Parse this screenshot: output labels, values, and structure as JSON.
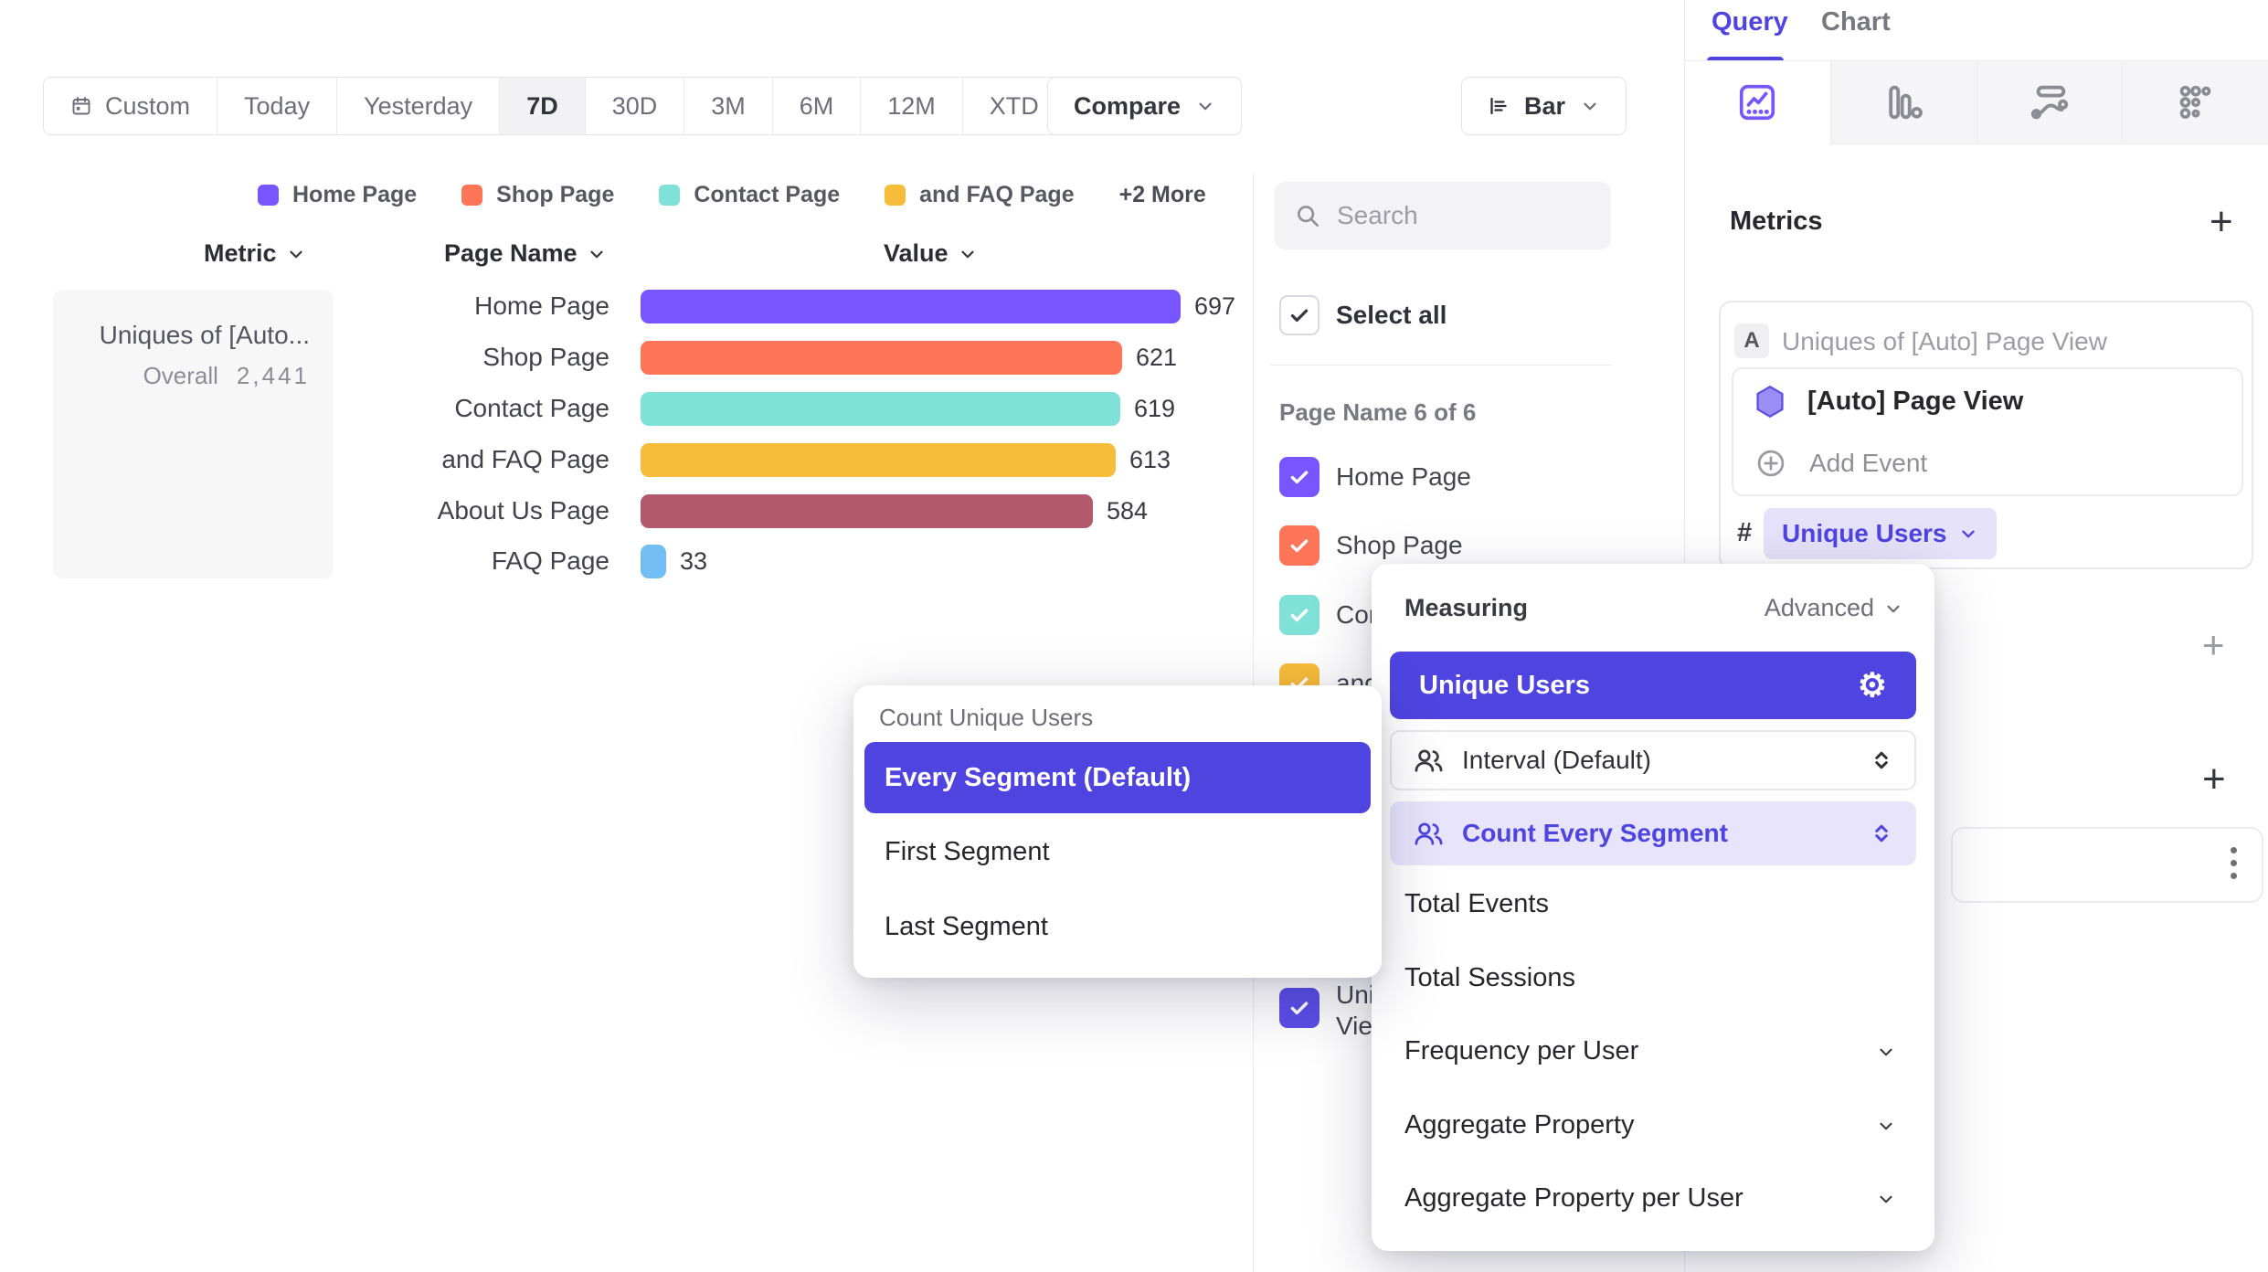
{
  "colors": {
    "brand_purple": "#7856FF",
    "selected_indigo": "#4F44E0",
    "lavender": "#E7E4FB",
    "coral": "#FF7557",
    "teal": "#80E1D9",
    "amber": "#F8BC3B",
    "maroon": "#B2596E",
    "light_blue": "#72BEF4"
  },
  "toolbar": {
    "ranges": [
      "Custom",
      "Today",
      "Yesterday",
      "7D",
      "30D",
      "3M",
      "6M",
      "12M",
      "XTD"
    ],
    "selected_range": "7D",
    "compare_label": "Compare",
    "chart_type_label": "Bar"
  },
  "legend": {
    "items": [
      {
        "label": "Home Page",
        "color": "#7856FF"
      },
      {
        "label": "Shop Page",
        "color": "#FF7557"
      },
      {
        "label": "Contact Page",
        "color": "#80E1D9"
      },
      {
        "label": "and FAQ Page",
        "color": "#F8BC3B"
      }
    ],
    "more_label": "+2 More"
  },
  "table": {
    "headers": {
      "metric": "Metric",
      "page_name": "Page Name",
      "value": "Value"
    },
    "metric_cell": {
      "title": "Uniques of [Auto...",
      "overall_label": "Overall",
      "overall_value": "2,441"
    }
  },
  "chart_data": {
    "type": "bar",
    "orientation": "horizontal",
    "categories": [
      "Home Page",
      "Shop Page",
      "Contact Page",
      "and FAQ Page",
      "About Us Page",
      "FAQ Page"
    ],
    "values": [
      697,
      621,
      619,
      613,
      584,
      33
    ],
    "colors": [
      "#7856FF",
      "#FF7557",
      "#80E1D9",
      "#F8BC3B",
      "#B2596E",
      "#72BEF4"
    ],
    "metric_name": "Uniques of [Auto] Page View",
    "overall_total": 2441,
    "xlim": [
      0,
      720
    ],
    "grid": false,
    "value_labels": true
  },
  "segment_panel": {
    "search_placeholder": "Search",
    "select_all_label": "Select all",
    "group_label": "Page Name 6 of 6",
    "items": [
      {
        "label": "Home Page",
        "color": "#7856FF",
        "checked": true
      },
      {
        "label": "Shop Page",
        "color": "#FF7557",
        "checked": true
      },
      {
        "label": "Contact Page",
        "color": "#80E1D9",
        "checked": true
      },
      {
        "label": "and FAQ Page",
        "color": "#F8BC3B",
        "checked": true
      },
      {
        "label": "About Us Page",
        "color": "#B2596E",
        "checked": true
      },
      {
        "label": "FAQ Page",
        "color": "#72BEF4",
        "checked": true
      },
      {
        "label": "Uniques of [Auto] Page View",
        "color": "#5B4FE8",
        "checked": true
      }
    ]
  },
  "sidebar": {
    "tabs": {
      "query": "Query",
      "chart": "Chart"
    },
    "active_tab": "Query",
    "chart_type_tabs": [
      "insights",
      "funnels",
      "flows",
      "retention"
    ],
    "metrics_header": "Metrics",
    "add_metric_label": "+",
    "metric_card": {
      "badge": "A",
      "title": "Uniques of [Auto] Page View",
      "event_name": "[Auto] Page View",
      "add_event_label": "Add Event",
      "hash": "#",
      "measure_label": "Unique Users"
    },
    "add_section_label": "+",
    "add_section_label_2": "+"
  },
  "measuring_popover": {
    "title": "Measuring",
    "advanced_label": "Advanced",
    "selected_option": "Unique Users",
    "interval_option": "Interval (Default)",
    "count_every_option": "Count Every Segment",
    "options": [
      "Total Events",
      "Total Sessions",
      "Frequency per User",
      "Aggregate Property",
      "Aggregate Property per User"
    ]
  },
  "count_popover": {
    "title": "Count Unique Users",
    "selected_option": "Every Segment (Default)",
    "options": [
      "First Segment",
      "Last Segment"
    ]
  }
}
